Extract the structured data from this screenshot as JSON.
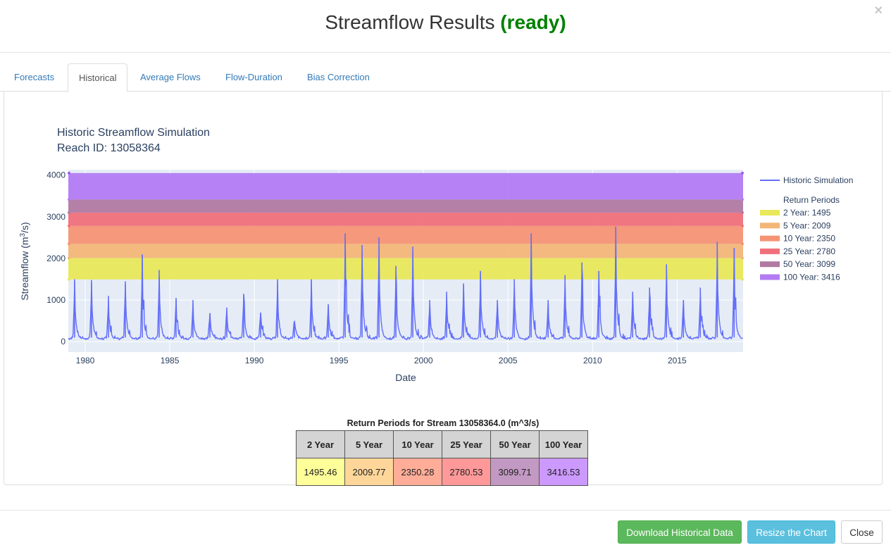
{
  "modal": {
    "title": "Streamflow Results",
    "status": "(ready)",
    "close_symbol": "×"
  },
  "tabs": [
    {
      "label": "Forecasts",
      "active": false
    },
    {
      "label": "Historical",
      "active": true
    },
    {
      "label": "Average Flows",
      "active": false
    },
    {
      "label": "Flow-Duration",
      "active": false
    },
    {
      "label": "Bias Correction",
      "active": false
    }
  ],
  "chart_data": {
    "type": "line",
    "title": "Historic Streamflow Simulation",
    "subtitle": "Reach ID: 13058364",
    "xlabel": "Date",
    "ylabel_main": "Streamflow (m",
    "ylabel_sup": "3",
    "ylabel_end": "/s)",
    "xlim": [
      1979.0,
      2018.9
    ],
    "ylim": [
      -250,
      4130
    ],
    "x_ticks": [
      1980,
      1985,
      1990,
      1995,
      2000,
      2005,
      2010,
      2015
    ],
    "y_ticks": [
      0,
      1000,
      2000,
      3000,
      4000
    ],
    "series": [
      {
        "name": "Historic Simulation",
        "color": "#636efa",
        "annual_peaks": [
          {
            "year": 1979,
            "peak": 1500
          },
          {
            "year": 1980,
            "peak": 1480
          },
          {
            "year": 1981,
            "peak": 1100
          },
          {
            "year": 1982,
            "peak": 1450
          },
          {
            "year": 1983,
            "peak": 2100
          },
          {
            "year": 1984,
            "peak": 1720
          },
          {
            "year": 1985,
            "peak": 1050
          },
          {
            "year": 1986,
            "peak": 1000
          },
          {
            "year": 1987,
            "peak": 680
          },
          {
            "year": 1988,
            "peak": 820
          },
          {
            "year": 1989,
            "peak": 1150
          },
          {
            "year": 1990,
            "peak": 700
          },
          {
            "year": 1991,
            "peak": 1500
          },
          {
            "year": 1992,
            "peak": 500
          },
          {
            "year": 1993,
            "peak": 1500
          },
          {
            "year": 1994,
            "peak": 900
          },
          {
            "year": 1995,
            "peak": 2600
          },
          {
            "year": 1996,
            "peak": 2320
          },
          {
            "year": 1997,
            "peak": 2500
          },
          {
            "year": 1998,
            "peak": 1820
          },
          {
            "year": 1999,
            "peak": 2280
          },
          {
            "year": 2000,
            "peak": 1000
          },
          {
            "year": 2001,
            "peak": 1200
          },
          {
            "year": 2002,
            "peak": 1400
          },
          {
            "year": 2003,
            "peak": 1700
          },
          {
            "year": 2004,
            "peak": 1000
          },
          {
            "year": 2005,
            "peak": 1500
          },
          {
            "year": 2006,
            "peak": 2600
          },
          {
            "year": 2007,
            "peak": 1000
          },
          {
            "year": 2008,
            "peak": 1600
          },
          {
            "year": 2009,
            "peak": 1900
          },
          {
            "year": 2010,
            "peak": 1700
          },
          {
            "year": 2011,
            "peak": 2760
          },
          {
            "year": 2012,
            "peak": 1200
          },
          {
            "year": 2013,
            "peak": 1300
          },
          {
            "year": 2014,
            "peak": 1860
          },
          {
            "year": 2015,
            "peak": 1000
          },
          {
            "year": 2016,
            "peak": 1300
          },
          {
            "year": 2017,
            "peak": 2400
          },
          {
            "year": 2018,
            "peak": 2250
          }
        ]
      }
    ],
    "legend_placement": "right",
    "legend_group_title": "Return Periods",
    "return_periods": [
      {
        "name": "2 Year: 1495",
        "low": 1495.46,
        "high": 2009.77,
        "color": "#e8e85a"
      },
      {
        "name": "5 Year: 2009",
        "low": 2009.77,
        "high": 2350.28,
        "color": "#f3b678"
      },
      {
        "name": "10 Year: 2350",
        "low": 2350.28,
        "high": 2780.53,
        "color": "#f59474"
      },
      {
        "name": "25 Year: 2780",
        "low": 2780.53,
        "high": 3099.71,
        "color": "#f0707b"
      },
      {
        "name": "50 Year: 3099",
        "low": 3099.71,
        "high": 3416.53,
        "color": "#b17aa2"
      },
      {
        "name": "100 Year: 3416",
        "low": 3416.53,
        "high": 4050,
        "color": "#b37bf3"
      }
    ]
  },
  "return_table": {
    "title": "Return Periods for Stream 13058364.0 (m^3/s)",
    "headers": [
      "2 Year",
      "5 Year",
      "10 Year",
      "25 Year",
      "50 Year",
      "100 Year"
    ],
    "values": [
      "1495.46",
      "2009.77",
      "2350.28",
      "2780.53",
      "3099.71",
      "3416.53"
    ],
    "colors": [
      "#ffff99",
      "#ffd699",
      "#ffad99",
      "#ff9999",
      "#c299c2",
      "#cc99ff"
    ]
  },
  "footer": {
    "download_label": "Download Historical Data",
    "resize_label": "Resize the Chart",
    "close_label": "Close"
  }
}
